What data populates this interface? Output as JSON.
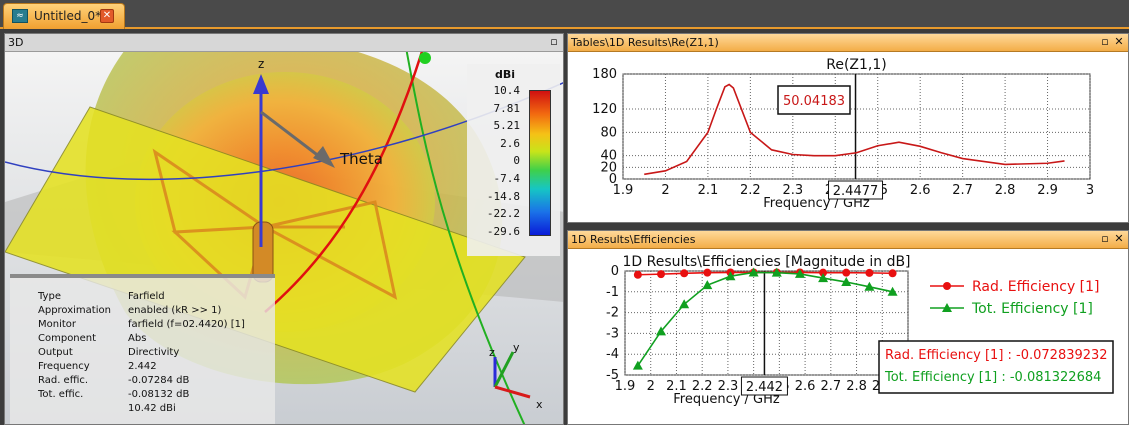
{
  "tab": {
    "label": "Untitled_0*",
    "icon": "3d-model-icon",
    "close": "close-tab-icon"
  },
  "panel3d": {
    "title": "3D",
    "axes": {
      "z": "z",
      "theta": "Theta"
    },
    "colorbar": {
      "unit": "dBi",
      "ticks": [
        "10.4",
        "7.81",
        "5.21",
        "2.6",
        "0",
        "-7.4",
        "-14.8",
        "-22.2",
        "-29.6"
      ]
    },
    "info": [
      {
        "key": "Type",
        "value": "Farfield"
      },
      {
        "key": "Approximation",
        "value": "enabled (kR >> 1)"
      },
      {
        "key": "Monitor",
        "value": "farfield (f=02.4420) [1]"
      },
      {
        "key": "Component",
        "value": "Abs"
      },
      {
        "key": "Output",
        "value": "Directivity"
      },
      {
        "key": "Frequency",
        "value": "2.442"
      },
      {
        "key": "Rad. effic.",
        "value": "-0.07284 dB"
      },
      {
        "key": "Tot. effic.",
        "value": "-0.08132 dB"
      },
      {
        "key": "",
        "value": "10.42 dBi"
      }
    ],
    "triad": {
      "z": "z",
      "y": "y",
      "x": "x"
    }
  },
  "panelZ": {
    "title": "Tables\\1D Results\\Re(Z1,1)",
    "marker_value": "50.04183",
    "marker_x_label": "2.4477"
  },
  "panelEff": {
    "title": "1D Results\\Efficiencies",
    "marker_x_label": "2.442",
    "readout": {
      "rad": "Rad. Efficiency [1] : -0.072839232",
      "tot": "Tot. Efficiency [1] : -0.081322684"
    }
  },
  "colors": {
    "accent": "#f0a030",
    "rad": "#e81010",
    "tot": "#10a020",
    "rez": "#c81818"
  },
  "chart_data": [
    {
      "type": "line",
      "title": "Re(Z1,1)",
      "xlabel": "Frequency / GHz",
      "ylabel": "",
      "xlim": [
        1.9,
        3
      ],
      "ylim": [
        0,
        180
      ],
      "xticks": [
        "1.9",
        "2",
        "2.1",
        "2.2",
        "2.3",
        "2.4",
        "2.5",
        "2.6",
        "2.7",
        "2.8",
        "2.9",
        "3"
      ],
      "yticks": [
        "0",
        "20",
        "40",
        "80",
        "120",
        "180"
      ],
      "grid": true,
      "marker": {
        "x": 2.4477,
        "y": 50.04183
      },
      "series": [
        {
          "name": "",
          "color": "#c81818",
          "x": [
            1.95,
            2.0,
            2.05,
            2.1,
            2.12,
            2.14,
            2.15,
            2.16,
            2.18,
            2.2,
            2.25,
            2.3,
            2.35,
            2.4,
            2.45,
            2.5,
            2.55,
            2.6,
            2.65,
            2.7,
            2.8,
            2.9,
            2.94
          ],
          "y": [
            8,
            14,
            30,
            80,
            120,
            158,
            162,
            156,
            118,
            80,
            50,
            42,
            40,
            40,
            45,
            57,
            63,
            56,
            45,
            35,
            25,
            27,
            31
          ]
        }
      ]
    },
    {
      "type": "line",
      "title": "1D Results\\Efficiencies [Magnitude in dB]",
      "xlabel": "Frequency / GHz",
      "ylabel": "",
      "xlim": [
        1.9,
        3
      ],
      "ylim": [
        -5,
        0
      ],
      "xticks": [
        "1.9",
        "2",
        "2.1",
        "2.2",
        "2.3",
        "2.4",
        "2.5",
        "2.6",
        "2.7",
        "2.8",
        "2.9",
        "3"
      ],
      "yticks": [
        "0",
        "-1",
        "-2",
        "-3",
        "-4",
        "-5"
      ],
      "grid": true,
      "legend": "right",
      "marker": {
        "x": 2.442
      },
      "series": [
        {
          "name": "Rad. Efficiency [1]",
          "color": "#e81010",
          "marker": "circle",
          "x": [
            1.95,
            2.04,
            2.13,
            2.22,
            2.31,
            2.4,
            2.49,
            2.58,
            2.67,
            2.76,
            2.85,
            2.94
          ],
          "y": [
            -0.18,
            -0.15,
            -0.11,
            -0.08,
            -0.07,
            -0.07,
            -0.07,
            -0.07,
            -0.08,
            -0.08,
            -0.09,
            -0.11
          ]
        },
        {
          "name": "Tot. Efficiency [1]",
          "color": "#10a020",
          "marker": "triangle",
          "x": [
            1.95,
            2.04,
            2.13,
            2.22,
            2.31,
            2.4,
            2.49,
            2.58,
            2.67,
            2.76,
            2.85,
            2.94
          ],
          "y": [
            -4.55,
            -2.9,
            -1.6,
            -0.68,
            -0.25,
            -0.07,
            -0.08,
            -0.14,
            -0.34,
            -0.53,
            -0.76,
            -1.0
          ]
        }
      ]
    }
  ]
}
